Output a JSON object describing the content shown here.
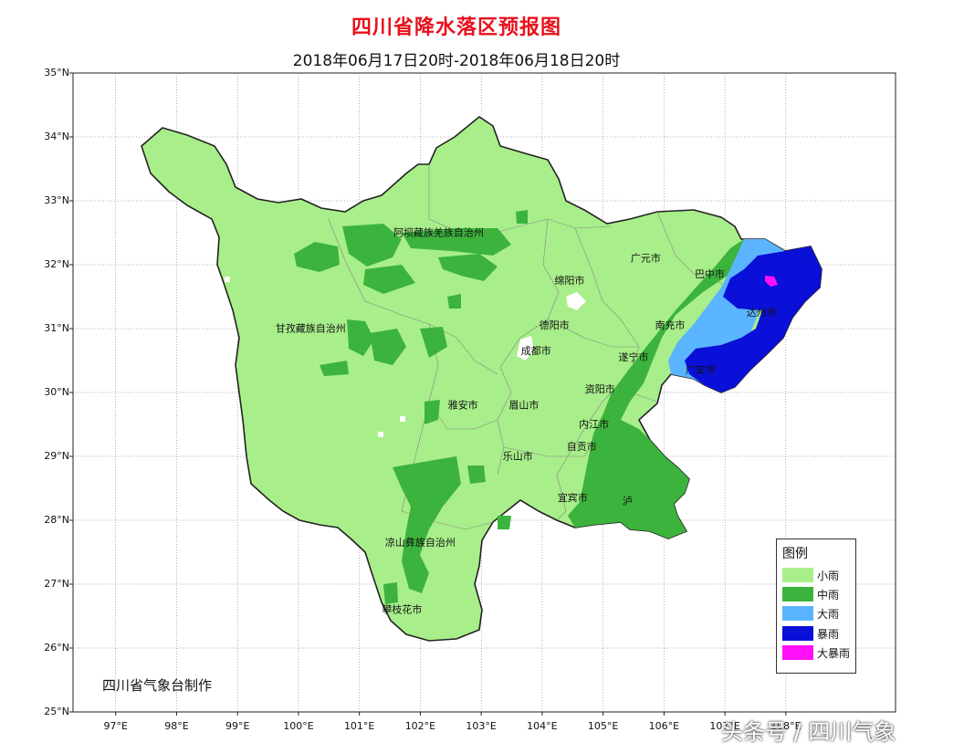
{
  "title": "四川省降水落区预报图",
  "subtitle": "2018年06月17日20时-2018年06月18日20时",
  "credit": "四川省气象台制作",
  "watermark": "头条号 / 四川气象",
  "axes": {
    "lat_labels": [
      "35°N",
      "34°N",
      "33°N",
      "32°N",
      "31°N",
      "30°N",
      "29°N",
      "28°N",
      "27°N",
      "26°N",
      "25°N"
    ],
    "lon_labels": [
      "97°E",
      "98°E",
      "99°E",
      "100°E",
      "101°E",
      "102°E",
      "103°E",
      "104°E",
      "105°E",
      "106°E",
      "107°E",
      "108°E"
    ],
    "lon_range": [
      96.3,
      109.8
    ],
    "lat_range": [
      25,
      35
    ],
    "grid": "dotted"
  },
  "cities": [
    {
      "name": "阿坝藏族羌族自治州",
      "lon": 102.3,
      "lat": 32.45
    },
    {
      "name": "甘孜藏族自治州",
      "lon": 100.2,
      "lat": 30.95
    },
    {
      "name": "广元市",
      "lon": 105.7,
      "lat": 32.05
    },
    {
      "name": "巴中市",
      "lon": 106.75,
      "lat": 31.8
    },
    {
      "name": "绵阳市",
      "lon": 104.45,
      "lat": 31.7
    },
    {
      "name": "德阳市",
      "lon": 104.2,
      "lat": 31.0
    },
    {
      "name": "南充市",
      "lon": 106.1,
      "lat": 31.0
    },
    {
      "name": "达州市",
      "lon": 107.6,
      "lat": 31.2
    },
    {
      "name": "成都市",
      "lon": 103.9,
      "lat": 30.6
    },
    {
      "name": "遂宁市",
      "lon": 105.5,
      "lat": 30.5
    },
    {
      "name": "广安市",
      "lon": 106.6,
      "lat": 30.3
    },
    {
      "name": "资阳市",
      "lon": 104.95,
      "lat": 30.0
    },
    {
      "name": "雅安市",
      "lon": 102.7,
      "lat": 29.75
    },
    {
      "name": "眉山市",
      "lon": 103.7,
      "lat": 29.75
    },
    {
      "name": "内江市",
      "lon": 104.85,
      "lat": 29.45
    },
    {
      "name": "自贡市",
      "lon": 104.65,
      "lat": 29.1
    },
    {
      "name": "乐山市",
      "lon": 103.6,
      "lat": 28.95
    },
    {
      "name": "宜宾市",
      "lon": 104.5,
      "lat": 28.3
    },
    {
      "name": "泸",
      "lon": 105.4,
      "lat": 28.25
    },
    {
      "name": "凉山彝族自治州",
      "lon": 102.0,
      "lat": 27.6
    },
    {
      "name": "攀枝花市",
      "lon": 101.7,
      "lat": 26.55
    }
  ],
  "legend": {
    "title": "图例",
    "items": [
      {
        "label": "小雨",
        "color": "#a8ee8a"
      },
      {
        "label": "中雨",
        "color": "#3cb33c"
      },
      {
        "label": "大雨",
        "color": "#5ab4ff"
      },
      {
        "label": "暴雨",
        "color": "#0a10d8"
      },
      {
        "label": "大暴雨",
        "color": "#ff10f8"
      }
    ]
  }
}
